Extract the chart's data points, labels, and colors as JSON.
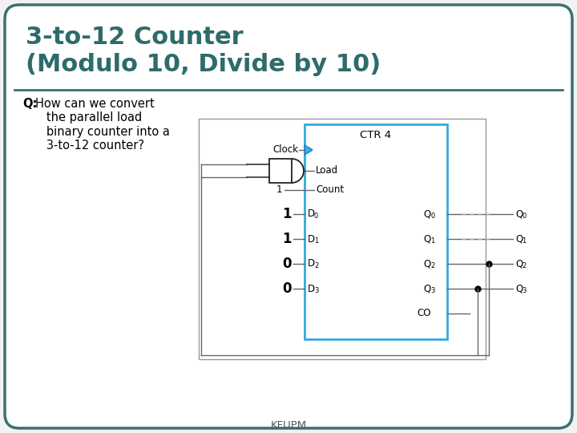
{
  "title_line1": "3-to-12 Counter",
  "title_line2": "(Modulo 10, Divide by 10)",
  "title_color": "#2e6b6b",
  "slide_bg": "#f2f2f2",
  "border_color": "#3a7070",
  "footer": "KFUPM",
  "ctr_label": "CTR 4",
  "ctr_border": "#33aadd",
  "d_labels": [
    "D",
    "D",
    "D",
    "D"
  ],
  "d_subs": [
    "0",
    "1",
    "2",
    "3"
  ],
  "q_labels_in": [
    "Q",
    "Q",
    "Q",
    "Q"
  ],
  "q_subs_in": [
    "0",
    "1",
    "2",
    "3"
  ],
  "q_labels_out": [
    "Q",
    "Q",
    "Q",
    "Q"
  ],
  "q_subs_out": [
    "0",
    "1",
    "2",
    "3"
  ],
  "q1_out_label": "Q",
  "data_values": [
    "1",
    "1",
    "0",
    "0"
  ],
  "fixed_label": "1",
  "co_label": "CO",
  "line_color": "#666666",
  "gate_color": "#222222"
}
